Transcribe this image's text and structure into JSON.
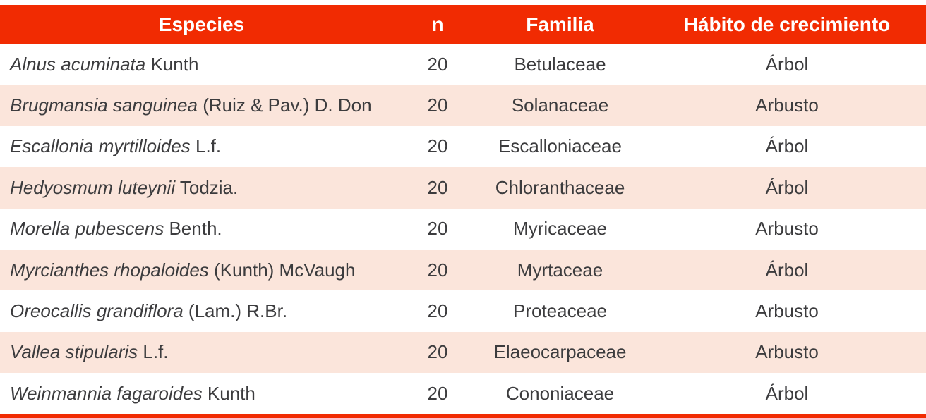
{
  "table": {
    "headers": [
      {
        "label": "Especies"
      },
      {
        "label": "n"
      },
      {
        "label": "Familia"
      },
      {
        "label": "Hábito de crecimiento"
      }
    ],
    "rows": [
      {
        "species_name": "Alnus acuminata",
        "species_author": "Kunth",
        "n": "20",
        "familia": "Betulaceae",
        "habito": "Árbol"
      },
      {
        "species_name": "Brugmansia sanguinea",
        "species_author": "(Ruiz & Pav.) D. Don",
        "n": "20",
        "familia": "Solanaceae",
        "habito": "Arbusto"
      },
      {
        "species_name": "Escallonia myrtilloides",
        "species_author": "L.f.",
        "n": "20",
        "familia": "Escalloniaceae",
        "habito": "Árbol"
      },
      {
        "species_name": "Hedyosmum luteynii",
        "species_author": "Todzia.",
        "n": "20",
        "familia": "Chloranthaceae",
        "habito": "Árbol"
      },
      {
        "species_name": "Morella pubescens",
        "species_author": "Benth.",
        "n": "20",
        "familia": "Myricaceae",
        "habito": "Arbusto"
      },
      {
        "species_name": "Myrcianthes rhopaloides",
        "species_author": "(Kunth) McVaugh",
        "n": "20",
        "familia": "Myrtaceae",
        "habito": "Árbol"
      },
      {
        "species_name": "Oreocallis grandiflora",
        "species_author": "(Lam.) R.Br.",
        "n": "20",
        "familia": "Proteaceae",
        "habito": "Arbusto"
      },
      {
        "species_name": "Vallea stipularis",
        "species_author": "L.f.",
        "n": "20",
        "familia": "Elaeocarpaceae",
        "habito": "Arbusto"
      },
      {
        "species_name": "Weinmannia fagaroides",
        "species_author": "Kunth",
        "n": "20",
        "familia": "Cononiaceae",
        "habito": "Árbol"
      }
    ]
  },
  "colors": {
    "header_bg": "#F12B02",
    "header_text": "#FFFFFF",
    "stripe_bg": "#FBE5DB",
    "body_text": "#3C3C3E",
    "bottom_bar": "#F12B02"
  }
}
